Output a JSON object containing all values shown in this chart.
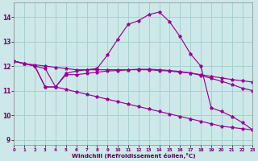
{
  "xlabel": "Windchill (Refroidissement éolien,°C)",
  "background_color": "#cde8e8",
  "grid_color": "#a8d0d0",
  "line_color": "#990099",
  "xlim": [
    0,
    23
  ],
  "ylim": [
    8.8,
    14.6
  ],
  "xticks": [
    0,
    1,
    2,
    3,
    4,
    5,
    6,
    7,
    8,
    9,
    10,
    11,
    12,
    13,
    14,
    15,
    16,
    17,
    18,
    19,
    20,
    21,
    22,
    23
  ],
  "yticks": [
    9,
    10,
    11,
    12,
    13,
    14
  ],
  "series": [
    {
      "x": [
        0,
        1,
        2,
        3,
        4,
        5,
        6,
        7,
        8,
        9,
        10,
        11,
        12,
        13,
        14,
        15,
        16,
        17,
        18,
        19,
        20,
        21,
        22,
        23
      ],
      "y": [
        12.2,
        12.1,
        12.05,
        12.0,
        11.95,
        11.9,
        11.85,
        11.85,
        11.85,
        11.85,
        11.85,
        11.85,
        11.85,
        11.85,
        11.82,
        11.8,
        11.75,
        11.72,
        11.65,
        11.58,
        11.52,
        11.45,
        11.4,
        11.35
      ]
    },
    {
      "x": [
        0,
        1,
        2,
        3,
        4,
        5,
        6,
        7,
        8,
        9,
        10,
        11,
        12,
        13,
        14,
        15,
        16,
        17,
        18,
        19,
        20,
        21,
        22,
        23
      ],
      "y": [
        12.2,
        12.1,
        12.0,
        11.15,
        11.15,
        11.65,
        11.65,
        11.7,
        11.75,
        11.8,
        11.82,
        11.85,
        11.87,
        11.87,
        11.85,
        11.82,
        11.78,
        11.72,
        11.62,
        11.5,
        11.38,
        11.25,
        11.1,
        11.0
      ]
    },
    {
      "x": [
        0,
        1,
        2,
        3,
        4,
        5,
        6,
        7,
        8,
        9,
        10,
        11,
        12,
        13,
        14,
        15,
        16,
        17,
        18,
        19,
        20,
        21,
        22,
        23
      ],
      "y": [
        12.2,
        12.1,
        12.0,
        11.9,
        11.15,
        11.7,
        11.8,
        11.85,
        11.9,
        12.45,
        13.1,
        13.7,
        13.85,
        14.1,
        14.2,
        13.8,
        13.2,
        12.5,
        12.0,
        10.3,
        10.15,
        9.95,
        9.7,
        9.4
      ]
    },
    {
      "x": [
        0,
        1,
        2,
        3,
        4,
        5,
        6,
        7,
        8,
        9,
        10,
        11,
        12,
        13,
        14,
        15,
        16,
        17,
        18,
        19,
        20,
        21,
        22,
        23
      ],
      "y": [
        12.2,
        12.1,
        12.0,
        11.15,
        11.15,
        11.05,
        10.95,
        10.85,
        10.75,
        10.65,
        10.55,
        10.45,
        10.35,
        10.25,
        10.15,
        10.05,
        9.95,
        9.85,
        9.75,
        9.65,
        9.55,
        9.5,
        9.45,
        9.4
      ]
    }
  ]
}
